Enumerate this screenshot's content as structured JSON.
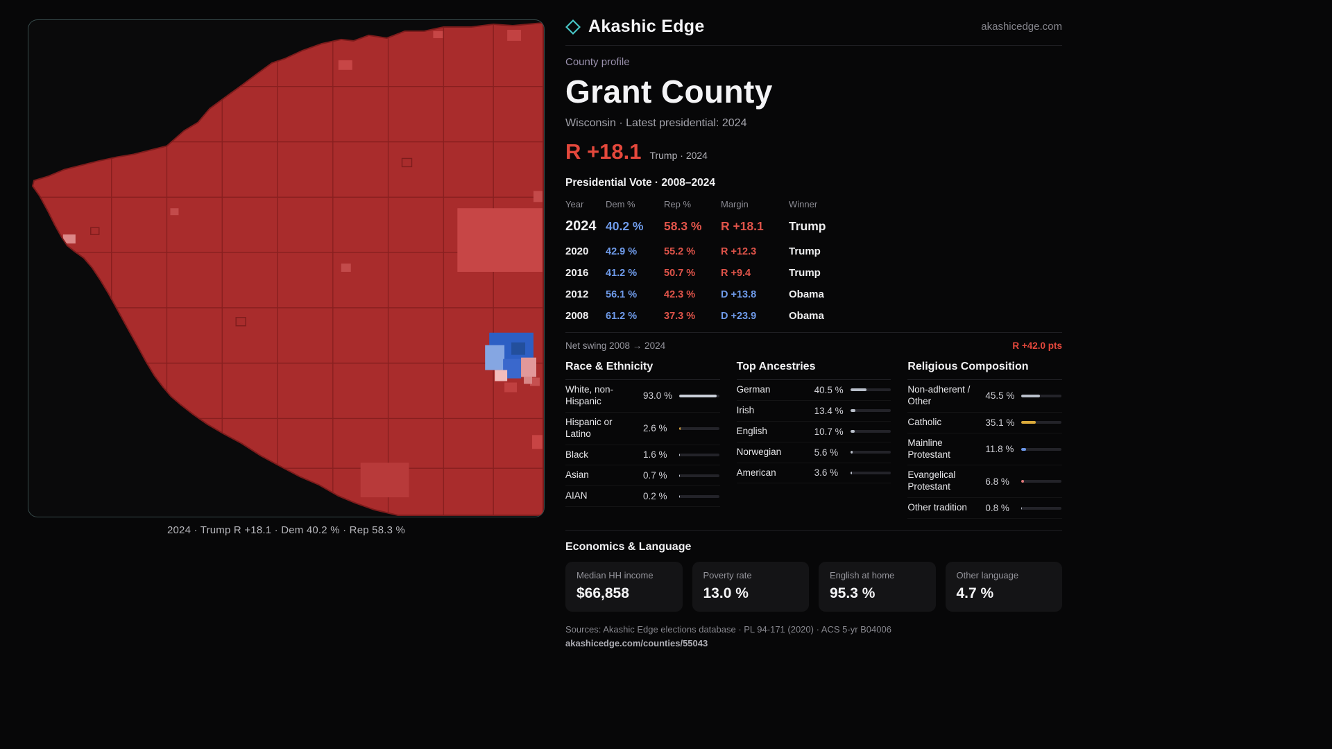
{
  "colors": {
    "dem": "#6f9bea",
    "rep": "#e0544a",
    "rep_strong": "#e4483c",
    "accent": "#49c9c9"
  },
  "brand": {
    "name": "Akashic Edge",
    "domain": "akashicedge.com"
  },
  "profile": {
    "kicker": "County profile",
    "title": "Grant County",
    "subtitle": "Wisconsin · Latest presidential: 2024",
    "headline_margin": "R +18.1",
    "headline_note": "Trump · 2024"
  },
  "map": {
    "caption": "2024 · Trump R +18.1 · Dem 40.2 % · Rep 58.3 %"
  },
  "vote": {
    "title": "Presidential Vote · 2008–2024",
    "headers": {
      "year": "Year",
      "dem": "Dem %",
      "rep": "Rep %",
      "margin": "Margin",
      "winner": "Winner"
    },
    "rows": [
      {
        "year": "2024",
        "dem": "40.2 %",
        "rep": "58.3 %",
        "margin": "R +18.1",
        "winner": "Trump",
        "margin_color": "#e0544a"
      },
      {
        "year": "2020",
        "dem": "42.9 %",
        "rep": "55.2 %",
        "margin": "R +12.3",
        "winner": "Trump",
        "margin_color": "#e0544a"
      },
      {
        "year": "2016",
        "dem": "41.2 %",
        "rep": "50.7 %",
        "margin": "R +9.4",
        "winner": "Trump",
        "margin_color": "#e0544a"
      },
      {
        "year": "2012",
        "dem": "56.1 %",
        "rep": "42.3 %",
        "margin": "D +13.8",
        "winner": "Obama",
        "margin_color": "#6f9bea"
      },
      {
        "year": "2008",
        "dem": "61.2 %",
        "rep": "37.3 %",
        "margin": "D +23.9",
        "winner": "Obama",
        "margin_color": "#6f9bea"
      }
    ]
  },
  "net_swing": {
    "label": "Net swing 2008 → 2024",
    "value": "R +42.0 pts"
  },
  "race": {
    "title": "Race & Ethnicity",
    "rows": [
      {
        "label": "White, non-Hispanic",
        "value": "93.0 %",
        "pct": 93.0,
        "bar": "#c9ced8"
      },
      {
        "label": "Hispanic or Latino",
        "value": "2.6 %",
        "pct": 2.6,
        "bar": "#e0a93e"
      },
      {
        "label": "Black",
        "value": "1.6 %",
        "pct": 1.6,
        "bar": "#c9ced8"
      },
      {
        "label": "Asian",
        "value": "0.7 %",
        "pct": 0.7,
        "bar": "#c9ced8"
      },
      {
        "label": "AIAN",
        "value": "0.2 %",
        "pct": 0.2,
        "bar": "#c9ced8"
      }
    ]
  },
  "ancestries": {
    "title": "Top Ancestries",
    "rows": [
      {
        "label": "German",
        "value": "40.5 %",
        "pct": 40.5,
        "bar": "#b9bfca"
      },
      {
        "label": "Irish",
        "value": "13.4 %",
        "pct": 13.4,
        "bar": "#b9bfca"
      },
      {
        "label": "English",
        "value": "10.7 %",
        "pct": 10.7,
        "bar": "#b9bfca"
      },
      {
        "label": "Norwegian",
        "value": "5.6 %",
        "pct": 5.6,
        "bar": "#b9bfca"
      },
      {
        "label": "American",
        "value": "3.6 %",
        "pct": 3.6,
        "bar": "#b9bfca"
      }
    ]
  },
  "religion": {
    "title": "Religious Composition",
    "rows": [
      {
        "label": "Non-adherent / Other",
        "value": "45.5 %",
        "pct": 45.5,
        "bar": "#b9bfca"
      },
      {
        "label": "Catholic",
        "value": "35.1 %",
        "pct": 35.1,
        "bar": "#d9a93a"
      },
      {
        "label": "Mainline Protestant",
        "value": "11.8 %",
        "pct": 11.8,
        "bar": "#6a95e6"
      },
      {
        "label": "Evangelical Protestant",
        "value": "6.8 %",
        "pct": 6.8,
        "bar": "#e07878"
      },
      {
        "label": "Other tradition",
        "value": "0.8 %",
        "pct": 0.8,
        "bar": "#b9bfca"
      }
    ]
  },
  "economics": {
    "title": "Economics & Language",
    "stats": [
      {
        "label": "Median HH income",
        "value": "$66,858"
      },
      {
        "label": "Poverty rate",
        "value": "13.0 %"
      },
      {
        "label": "English at home",
        "value": "95.3 %"
      },
      {
        "label": "Other language",
        "value": "4.7 %"
      }
    ]
  },
  "footer": {
    "sources": "Sources: Akashic Edge elections database · PL 94-171 (2020) · ACS 5-yr B04006",
    "permalink": "akashicedge.com/counties/55043"
  }
}
